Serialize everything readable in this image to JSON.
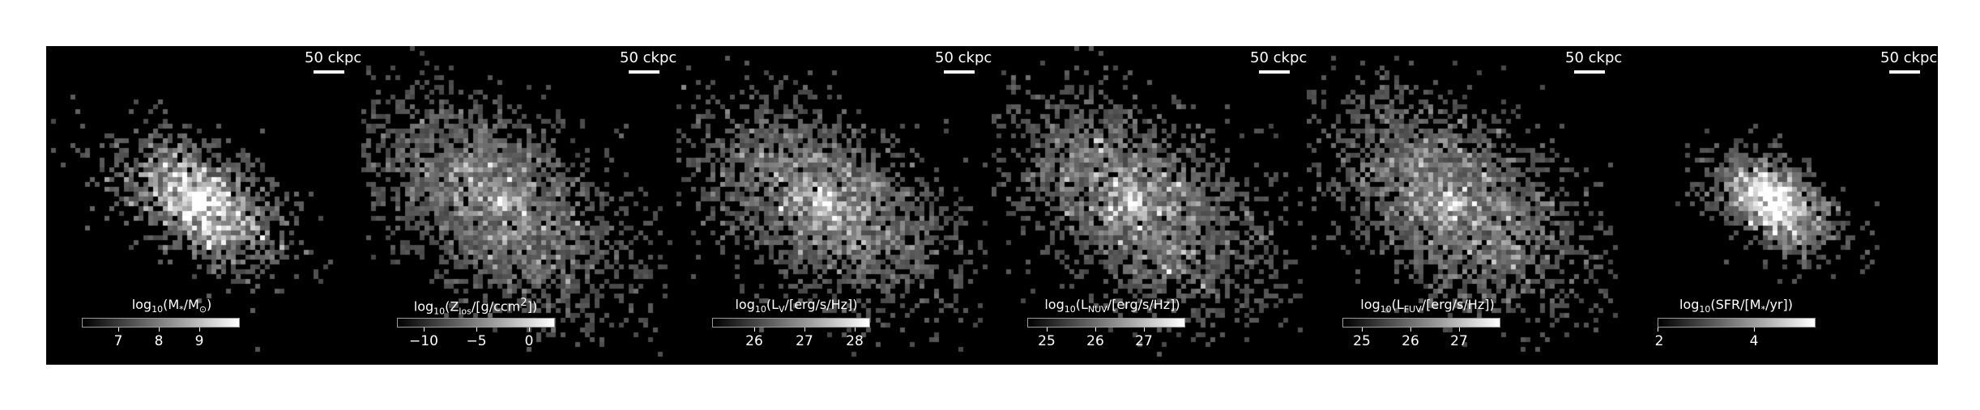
{
  "figure": {
    "panels": [
      {
        "id": "stellar-mass",
        "scalebar": "50 ckpc",
        "colorbar": {
          "label_prefix": "log",
          "label_base": "10",
          "label_body": "(M",
          "label_star_sub": "*",
          "label_mid": "/M",
          "label_sun_sub": "⊙",
          "label_end": ")",
          "ticks": [
            "7",
            "8",
            "9"
          ],
          "tick_values": [
            7,
            8,
            9
          ],
          "range": [
            6.1,
            10.0
          ]
        },
        "image": {
          "center": [
            0.49,
            0.49
          ],
          "spread": 0.12,
          "density": 0.45,
          "brightness": 0.75
        }
      },
      {
        "id": "metallicity",
        "scalebar": "50 ckpc",
        "colorbar": {
          "label_prefix": "log",
          "label_base": "10",
          "label_body": "(Z",
          "label_sub": "los",
          "label_end": "/[g/ccm",
          "label_sup": "2",
          "label_close": "])",
          "ticks": [
            "−10",
            "−5",
            "0"
          ],
          "tick_values": [
            -10,
            -5,
            0
          ],
          "range": [
            -12.5,
            2.5
          ]
        },
        "image": {
          "center": [
            0.43,
            0.49
          ],
          "spread": 0.2,
          "density": 0.75,
          "brightness": 0.55
        }
      },
      {
        "id": "lum-v",
        "scalebar": "50 ckpc",
        "colorbar": {
          "label_prefix": "log",
          "label_base": "10",
          "label_body": "(L",
          "label_sub": "V",
          "label_end": "/[erg/s/Hz])",
          "ticks": [
            "26",
            "27",
            "28"
          ],
          "tick_values": [
            26,
            27,
            28
          ],
          "range": [
            25.0,
            28.2
          ]
        },
        "image": {
          "center": [
            0.47,
            0.49
          ],
          "spread": 0.19,
          "density": 0.7,
          "brightness": 0.6
        }
      },
      {
        "id": "lum-nuv",
        "scalebar": "50 ckpc",
        "colorbar": {
          "label_prefix": "log",
          "label_base": "10",
          "label_body": "(L",
          "label_sub": "NUV",
          "label_end": "/[erg/s/Hz])",
          "ticks": [
            "25",
            "26",
            "27"
          ],
          "tick_values": [
            25,
            26,
            27
          ],
          "range": [
            24.6,
            27.8
          ]
        },
        "image": {
          "center": [
            0.46,
            0.49
          ],
          "spread": 0.2,
          "density": 0.72,
          "brightness": 0.6
        }
      },
      {
        "id": "lum-fuv",
        "scalebar": "50 ckpc",
        "colorbar": {
          "label_prefix": "log",
          "label_base": "10",
          "label_body": "(L",
          "label_sub": "FUV",
          "label_end": "/[erg/s/Hz])",
          "ticks": [
            "25",
            "26",
            "27"
          ],
          "tick_values": [
            25,
            26,
            27
          ],
          "range": [
            24.6,
            27.8
          ]
        },
        "image": {
          "center": [
            0.47,
            0.49
          ],
          "spread": 0.2,
          "density": 0.72,
          "brightness": 0.6
        }
      },
      {
        "id": "sfr",
        "scalebar": "50 ckpc",
        "colorbar": {
          "label_prefix": "log",
          "label_base": "10",
          "label_body": "(SFR/[M",
          "label_star_sub": "*",
          "label_end": "/yr])",
          "ticks": [
            "2",
            "4"
          ],
          "tick_values": [
            2,
            4
          ],
          "range": [
            2.0,
            5.3
          ]
        },
        "image": {
          "center": [
            0.47,
            0.49
          ],
          "spread": 0.09,
          "density": 0.4,
          "brightness": 0.6
        }
      }
    ]
  }
}
